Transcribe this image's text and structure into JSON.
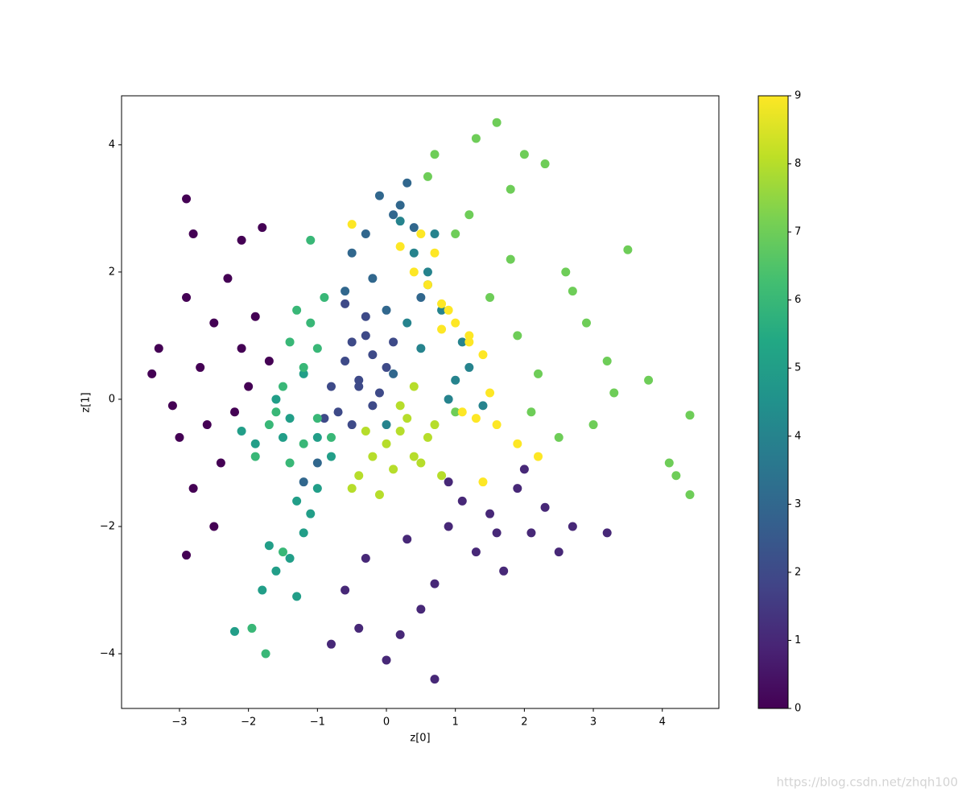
{
  "chart_data": {
    "type": "scatter",
    "xlabel": "z[0]",
    "ylabel": "z[1]",
    "xlim": [
      -3.84,
      4.82
    ],
    "ylim": [
      -4.86,
      4.77
    ],
    "xticks": [
      {
        "value": -3,
        "label": "−3"
      },
      {
        "value": -2,
        "label": "−2"
      },
      {
        "value": -1,
        "label": "−1"
      },
      0,
      1,
      2,
      3,
      4
    ],
    "yticks": [
      {
        "value": -4,
        "label": "−4"
      },
      {
        "value": -2,
        "label": "−2"
      },
      0,
      2,
      4
    ],
    "colormap": "viridis",
    "clim": [
      0,
      9
    ],
    "cticks": [
      0,
      1,
      2,
      3,
      4,
      5,
      6,
      7,
      8,
      9
    ],
    "grid": false,
    "watermark": "https://blog.csdn.net/zhqh100",
    "x": [
      -2.9,
      -2.8,
      -3.4,
      -3.3,
      -3.1,
      -2.9,
      -2.7,
      -2.5,
      -2.3,
      -2.1,
      -1.9,
      -1.7,
      -2.6,
      -2.2,
      -2.0,
      -2.4,
      -2.8,
      -3.0,
      -2.5,
      -2.1,
      -1.8,
      -2.9,
      -0.8,
      -0.6,
      -0.3,
      0.0,
      0.3,
      0.5,
      0.7,
      0.9,
      1.1,
      1.3,
      1.5,
      1.7,
      1.9,
      2.1,
      2.3,
      2.5,
      2.7,
      3.2,
      0.7,
      0.2,
      -0.4,
      0.9,
      1.6,
      2.0,
      -0.8,
      -0.6,
      -0.5,
      -0.4,
      -0.3,
      -0.2,
      -0.1,
      0.0,
      -0.7,
      -0.5,
      -0.3,
      -0.6,
      -0.2,
      0.1,
      -0.4,
      -0.9,
      -0.5,
      -0.3,
      -0.1,
      0.1,
      0.2,
      0.4,
      0.3,
      -0.2,
      0.0,
      0.5,
      -1.0,
      -1.2,
      0.1,
      -0.6,
      0.4,
      0.6,
      0.8,
      1.0,
      0.5,
      0.3,
      0.9,
      1.2,
      0.2,
      0.7,
      1.4,
      0.0,
      0.6,
      1.1,
      -1.6,
      -1.4,
      -1.2,
      -1.0,
      -0.8,
      -1.5,
      -1.3,
      -1.1,
      -1.7,
      -1.9,
      -2.1,
      -1.4,
      -1.2,
      -1.6,
      -1.8,
      -2.2,
      -1.3,
      -1.0,
      -1.3,
      -1.1,
      -1.0,
      -1.2,
      -1.4,
      -1.5,
      -1.6,
      -0.9,
      -1.0,
      -1.2,
      -1.4,
      -1.7,
      -1.9,
      -1.95,
      -1.75,
      -1.5,
      -0.8,
      -1.1,
      1.0,
      1.3,
      1.6,
      1.8,
      2.0,
      2.3,
      2.6,
      2.9,
      3.2,
      3.5,
      3.8,
      4.1,
      4.4,
      4.2,
      4.4,
      1.2,
      1.5,
      1.9,
      2.2,
      0.7,
      2.1,
      2.5,
      3.0,
      3.3,
      1.8,
      2.7,
      1.0,
      0.6,
      0.0,
      0.2,
      0.4,
      0.6,
      0.1,
      0.3,
      -0.2,
      -0.4,
      0.5,
      0.7,
      -0.1,
      0.2,
      -0.3,
      0.8,
      -0.5,
      0.4,
      0.4,
      0.6,
      0.8,
      1.0,
      1.2,
      1.4,
      1.1,
      1.3,
      1.5,
      0.7,
      0.5,
      0.9,
      1.2,
      1.6,
      -0.5,
      0.2,
      1.9,
      1.4,
      2.2,
      0.8
    ],
    "y": [
      3.15,
      2.6,
      0.4,
      0.8,
      -0.1,
      1.6,
      0.5,
      1.2,
      1.9,
      0.8,
      1.3,
      0.6,
      -0.4,
      -0.2,
      0.2,
      -1.0,
      -1.4,
      -0.6,
      -2.0,
      2.5,
      2.7,
      -2.45,
      -3.85,
      -3.0,
      -2.5,
      -4.1,
      -2.2,
      -3.3,
      -4.4,
      -2.0,
      -1.6,
      -2.4,
      -1.8,
      -2.7,
      -1.4,
      -2.1,
      -1.7,
      -2.4,
      -2.0,
      -2.1,
      -2.9,
      -3.7,
      -3.6,
      -1.3,
      -2.1,
      -1.1,
      0.2,
      0.6,
      0.9,
      0.3,
      1.3,
      0.7,
      0.1,
      0.5,
      -0.2,
      -0.4,
      1.0,
      1.5,
      -0.1,
      0.9,
      0.2,
      -0.3,
      2.3,
      2.6,
      3.2,
      2.9,
      3.05,
      2.7,
      3.4,
      1.9,
      1.4,
      1.6,
      -1.0,
      -1.3,
      0.4,
      1.7,
      2.3,
      2.0,
      1.4,
      0.3,
      0.8,
      1.2,
      0.0,
      0.5,
      2.8,
      2.6,
      -0.1,
      -0.4,
      1.8,
      0.9,
      0.0,
      -0.3,
      0.4,
      -0.6,
      -0.9,
      -0.6,
      -1.6,
      -1.8,
      -2.3,
      -0.7,
      -0.5,
      -2.5,
      -2.1,
      -2.7,
      -3.0,
      -3.65,
      -3.1,
      -1.4,
      1.4,
      1.2,
      0.8,
      0.5,
      0.9,
      0.2,
      -0.2,
      1.6,
      -0.3,
      -0.7,
      -1.0,
      -0.4,
      -0.9,
      -3.6,
      -4.0,
      -2.4,
      -0.6,
      2.5,
      2.6,
      4.1,
      4.35,
      3.3,
      3.85,
      3.7,
      2.0,
      1.2,
      0.6,
      2.35,
      0.3,
      -1.0,
      -0.25,
      -1.2,
      -1.5,
      2.9,
      1.6,
      1.0,
      0.4,
      3.85,
      -0.2,
      -0.6,
      -0.4,
      0.1,
      2.2,
      1.7,
      -0.2,
      3.5,
      -0.7,
      -0.5,
      -0.9,
      -0.6,
      -1.1,
      -0.3,
      -0.9,
      -1.2,
      -1.0,
      -0.4,
      -1.5,
      -0.1,
      -0.5,
      -1.2,
      -1.4,
      0.2,
      2.0,
      1.8,
      1.5,
      1.2,
      1.0,
      0.7,
      -0.2,
      -0.3,
      0.1,
      2.3,
      2.6,
      1.4,
      0.9,
      -0.4,
      2.75,
      2.4,
      -0.7,
      -1.3,
      -0.9,
      1.1
    ],
    "c": [
      0,
      0,
      0,
      0,
      0,
      0,
      0,
      0,
      0,
      0,
      0,
      0,
      0,
      0,
      0,
      0,
      0,
      0,
      0,
      0,
      0,
      0,
      1,
      1,
      1,
      1,
      1,
      1,
      1,
      1,
      1,
      1,
      1,
      1,
      1,
      1,
      1,
      1,
      1,
      1,
      1,
      1,
      1,
      1,
      1,
      1,
      2,
      2,
      2,
      2,
      2,
      2,
      2,
      2,
      2,
      2,
      2,
      2,
      2,
      2,
      2,
      2,
      3,
      3,
      3,
      3,
      3,
      3,
      3,
      3,
      3,
      3,
      3,
      3,
      3,
      3,
      4,
      4,
      4,
      4,
      4,
      4,
      4,
      4,
      4,
      4,
      4,
      4,
      4,
      4,
      5,
      5,
      5,
      5,
      5,
      5,
      5,
      5,
      5,
      5,
      5,
      5,
      5,
      5,
      5,
      5,
      5,
      5,
      6,
      6,
      6,
      6,
      6,
      6,
      6,
      6,
      6,
      6,
      6,
      6,
      6,
      6,
      6,
      6,
      6,
      6,
      7,
      7,
      7,
      7,
      7,
      7,
      7,
      7,
      7,
      7,
      7,
      7,
      7,
      7,
      7,
      7,
      7,
      7,
      7,
      7,
      7,
      7,
      7,
      7,
      7,
      7,
      7,
      7,
      8,
      8,
      8,
      8,
      8,
      8,
      8,
      8,
      8,
      8,
      8,
      8,
      8,
      8,
      8,
      8,
      9,
      9,
      9,
      9,
      9,
      9,
      9,
      9,
      9,
      9,
      9,
      9,
      9,
      9,
      9,
      9,
      9,
      9,
      9,
      9
    ]
  }
}
